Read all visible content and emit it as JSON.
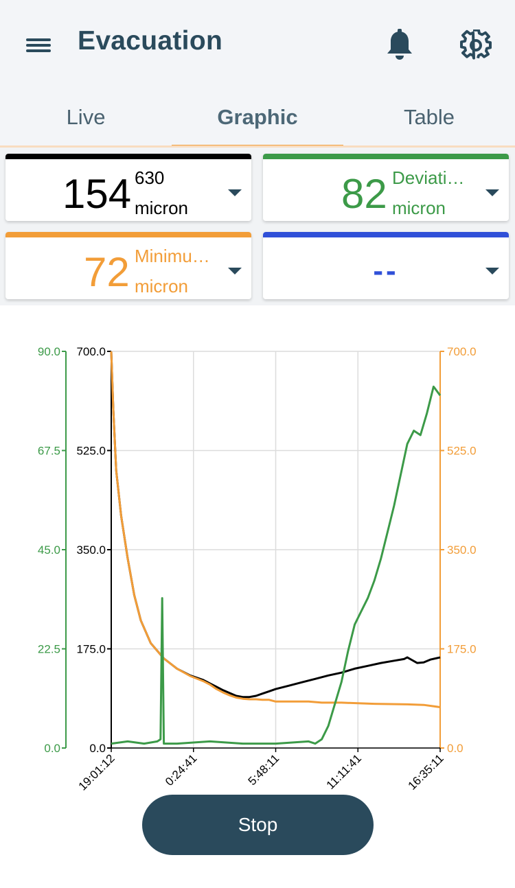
{
  "header": {
    "title": "Evacuation",
    "menu_icon": "hamburger-menu-icon",
    "notification_icon": "bell-icon",
    "settings_icon": "gear-icon"
  },
  "tabs": [
    {
      "label": "Live",
      "active": false
    },
    {
      "label": "Graphic",
      "active": true
    },
    {
      "label": "Table",
      "active": false
    }
  ],
  "cards": [
    {
      "value": "154",
      "superscript": "630",
      "unit": "micron",
      "color": "#000000"
    },
    {
      "value": "82",
      "label": "Deviati…",
      "unit": "micron",
      "color": "#3c9a48"
    },
    {
      "value": "72",
      "label": "Minimu…",
      "unit": "micron",
      "color": "#f29d38"
    },
    {
      "value": "--",
      "color": "#3050d8"
    }
  ],
  "chart_data": {
    "type": "line",
    "left_outer_axis": {
      "color": "#3c9a48",
      "ticks": [
        "90.0",
        "67.5",
        "45.0",
        "22.5",
        "0.0"
      ],
      "ylim": [
        0,
        90
      ]
    },
    "left_inner_axis": {
      "color": "#000000",
      "ticks": [
        "700.0",
        "525.0",
        "350.0",
        "175.0",
        "0.0"
      ],
      "ylim": [
        0,
        700
      ]
    },
    "right_axis": {
      "color": "#f29d38",
      "ticks": [
        "700.0",
        "525.0",
        "350.0",
        "175.0",
        "0.0"
      ],
      "ylim": [
        0,
        700
      ]
    },
    "x_ticks": [
      "19:01:12",
      "0:24:41",
      "5:48:11",
      "11:11:41",
      "16:35:11"
    ],
    "grid": true,
    "series": [
      {
        "color": "#000000",
        "axis": "left_inner",
        "points": [
          [
            0,
            700
          ],
          [
            0.6,
            600
          ],
          [
            1.5,
            490
          ],
          [
            3,
            410
          ],
          [
            5,
            335
          ],
          [
            7,
            270
          ],
          [
            9,
            225
          ],
          [
            12,
            185
          ],
          [
            16,
            158
          ],
          [
            20,
            140
          ],
          [
            24,
            128
          ],
          [
            28,
            120
          ],
          [
            30,
            114
          ],
          [
            32,
            108
          ],
          [
            34,
            102
          ],
          [
            36,
            97
          ],
          [
            38,
            92
          ],
          [
            40,
            90
          ],
          [
            42,
            90
          ],
          [
            44,
            92
          ],
          [
            46,
            96
          ],
          [
            48,
            100
          ],
          [
            50,
            104
          ],
          [
            54,
            110
          ],
          [
            58,
            116
          ],
          [
            62,
            122
          ],
          [
            66,
            128
          ],
          [
            70,
            133
          ],
          [
            74,
            140
          ],
          [
            78,
            145
          ],
          [
            82,
            150
          ],
          [
            86,
            154
          ],
          [
            89,
            157
          ],
          [
            90,
            160
          ],
          [
            91.5,
            155
          ],
          [
            93,
            150
          ],
          [
            95,
            151
          ],
          [
            97,
            156
          ],
          [
            100,
            160
          ]
        ]
      },
      {
        "color": "#f29d38",
        "axis": "right",
        "points": [
          [
            0,
            700
          ],
          [
            0.6,
            600
          ],
          [
            1.5,
            490
          ],
          [
            3,
            410
          ],
          [
            5,
            335
          ],
          [
            7,
            270
          ],
          [
            9,
            225
          ],
          [
            12,
            185
          ],
          [
            16,
            158
          ],
          [
            20,
            140
          ],
          [
            24,
            127
          ],
          [
            28,
            118
          ],
          [
            30,
            112
          ],
          [
            32,
            104
          ],
          [
            34,
            98
          ],
          [
            36,
            93
          ],
          [
            38,
            89
          ],
          [
            40,
            87
          ],
          [
            42,
            86
          ],
          [
            44,
            86
          ],
          [
            46,
            85
          ],
          [
            48,
            85
          ],
          [
            50,
            82
          ],
          [
            56,
            82
          ],
          [
            60,
            82
          ],
          [
            64,
            80
          ],
          [
            70,
            80
          ],
          [
            80,
            78
          ],
          [
            90,
            77
          ],
          [
            95,
            76
          ],
          [
            100,
            72
          ]
        ]
      },
      {
        "color": "#3c9a48",
        "axis": "left_outer",
        "points": [
          [
            0,
            1
          ],
          [
            5,
            1.5
          ],
          [
            10,
            1
          ],
          [
            14,
            1.5
          ],
          [
            15,
            2
          ],
          [
            15.5,
            34
          ],
          [
            16,
            1
          ],
          [
            20,
            1
          ],
          [
            30,
            1.5
          ],
          [
            40,
            1
          ],
          [
            50,
            1
          ],
          [
            60,
            1.5
          ],
          [
            62,
            1
          ],
          [
            64,
            2
          ],
          [
            66,
            5
          ],
          [
            68,
            10
          ],
          [
            70,
            15
          ],
          [
            72,
            22
          ],
          [
            74,
            28
          ],
          [
            76,
            31
          ],
          [
            78,
            34
          ],
          [
            80,
            38
          ],
          [
            82,
            43
          ],
          [
            84,
            49
          ],
          [
            86,
            55
          ],
          [
            88,
            62
          ],
          [
            90,
            69
          ],
          [
            92,
            72
          ],
          [
            94,
            71
          ],
          [
            96,
            76
          ],
          [
            98,
            82
          ],
          [
            100,
            80
          ]
        ]
      }
    ]
  },
  "stop_button": {
    "label": "Stop"
  }
}
